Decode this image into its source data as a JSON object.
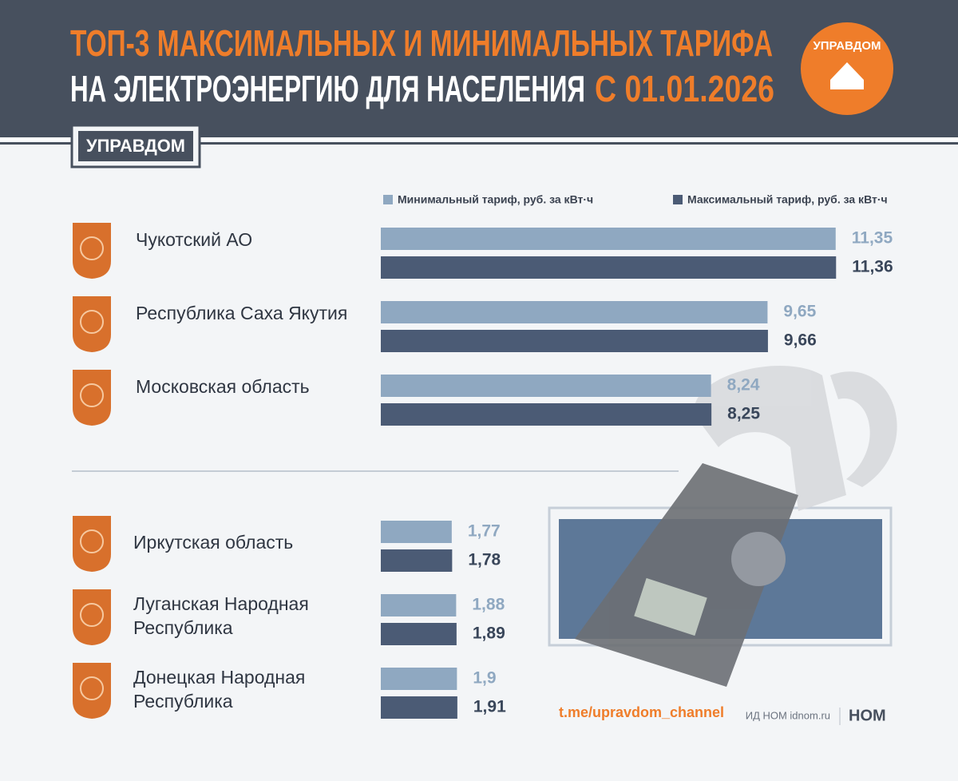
{
  "chart_data": {
    "type": "bar",
    "title": "ТОП-3 МАКСИМАЛЬНЫХ И МИНИМАЛЬНЫХ ТАРИФА",
    "subtitle": "НА ЭЛЕКТРОЭНЕРГИЮ ДЛЯ НАСЕЛЕНИЯ",
    "subtitle_date": "С 01.01.2026",
    "badge": "УПРАВДОМ",
    "logo": "УПРАВДОМ",
    "categories": [
      "Чукотский АО",
      "Республика Саха Якутия",
      "Московская область",
      "Иркутская область",
      "Луганская Народная Республика",
      "Донецкая Народная Республика"
    ],
    "series": [
      {
        "name": "Минимальный тариф, руб. за кВт·ч",
        "color": "#8fa8c1",
        "values": [
          11.35,
          9.65,
          8.24,
          1.77,
          1.88,
          1.9
        ],
        "value_labels": [
          "11,35",
          "9,65",
          "8,24",
          "1,77",
          "1,88",
          "1,9"
        ]
      },
      {
        "name": "Максимальный тариф, руб. за кВт·ч",
        "color": "#4b5b75",
        "values": [
          11.36,
          9.66,
          8.25,
          1.78,
          1.89,
          1.91
        ],
        "value_labels": [
          "11,36",
          "9,66",
          "8,25",
          "1,78",
          "1,89",
          "1,91"
        ]
      }
    ],
    "footer_link": "t.me/upravdom_channel",
    "footer_source": "ИД НОМ idnom.ru",
    "footer_brand": "НОМ"
  }
}
